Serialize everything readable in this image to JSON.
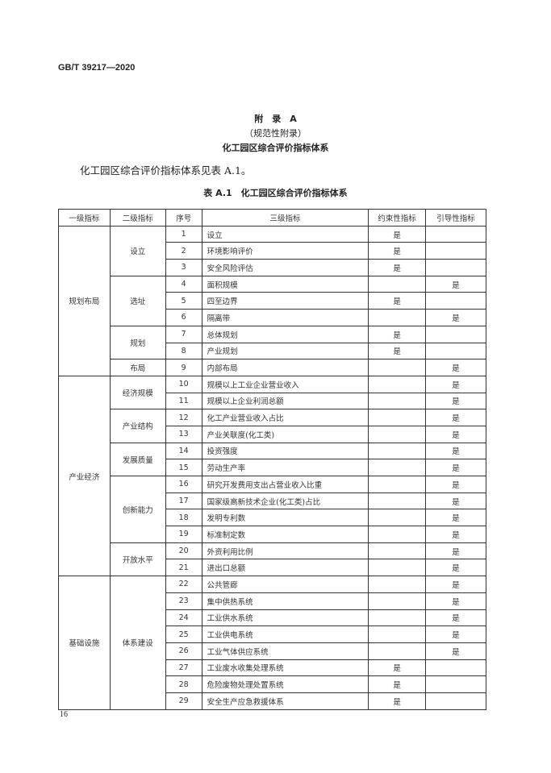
{
  "header": "GB/T 39217—2020",
  "appendix_title": "附　录　A",
  "appendix_type": "（规范性附录）",
  "appendix_name": "化工园区综合评价指标体系",
  "body_text": "化工园区综合评价指标体系见表 A.1。",
  "table_caption": "表 A.1　化工园区综合评价指标体系",
  "columns": [
    "一级指标",
    "二级指标",
    "序号",
    "三级指标",
    "约束性指标",
    "引导性指标"
  ],
  "groups": [
    {
      "level1": "规划布局",
      "subs": [
        {
          "level2": "设立",
          "rows": [
            [
              "1",
              "设立",
              "是",
              ""
            ],
            [
              "2",
              "环境影响评价",
              "是",
              ""
            ],
            [
              "3",
              "安全风险评估",
              "是",
              ""
            ]
          ]
        },
        {
          "level2": "选址",
          "rows": [
            [
              "4",
              "面积规模",
              "",
              "是"
            ],
            [
              "5",
              "四至边界",
              "是",
              ""
            ],
            [
              "6",
              "隔离带",
              "",
              "是"
            ]
          ]
        },
        {
          "level2": "规划",
          "rows": [
            [
              "7",
              "总体规划",
              "是",
              ""
            ],
            [
              "8",
              "产业规划",
              "是",
              ""
            ]
          ]
        },
        {
          "level2": "布局",
          "rows": [
            [
              "9",
              "内部布局",
              "",
              "是"
            ]
          ]
        }
      ]
    },
    {
      "level1": "产业经济",
      "subs": [
        {
          "level2": "经济规模",
          "rows": [
            [
              "10",
              "规模以上工业企业营业收入",
              "",
              "是"
            ],
            [
              "11",
              "规模以上企业利润总额",
              "",
              "是"
            ]
          ]
        },
        {
          "level2": "产业结构",
          "rows": [
            [
              "12",
              "化工产业营业收入占比",
              "",
              "是"
            ],
            [
              "13",
              "产业关联度(化工类)",
              "",
              "是"
            ]
          ]
        },
        {
          "level2": "发展质量",
          "rows": [
            [
              "14",
              "投资强度",
              "",
              "是"
            ],
            [
              "15",
              "劳动生产率",
              "",
              "是"
            ]
          ]
        },
        {
          "level2": "创新能力",
          "rows": [
            [
              "16",
              "研究开发费用支出占营业收入比重",
              "",
              "是"
            ],
            [
              "17",
              "国家级高新技术企业(化工类)占比",
              "",
              "是"
            ],
            [
              "18",
              "发明专利数",
              "",
              "是"
            ],
            [
              "19",
              "标准制定数",
              "",
              "是"
            ]
          ]
        },
        {
          "level2": "开放水平",
          "rows": [
            [
              "20",
              "外资利用比例",
              "",
              "是"
            ],
            [
              "21",
              "进出口总额",
              "",
              "是"
            ]
          ]
        }
      ]
    },
    {
      "level1": "基础设施",
      "subs": [
        {
          "level2": "体系建设",
          "rows": [
            [
              "22",
              "公共管廊",
              "",
              "是"
            ],
            [
              "23",
              "集中供热系统",
              "",
              "是"
            ],
            [
              "24",
              "工业供水系统",
              "",
              "是"
            ],
            [
              "25",
              "工业供电系统",
              "",
              "是"
            ],
            [
              "26",
              "工业气体供应系统",
              "",
              "是"
            ],
            [
              "27",
              "工业废水收集处理系统",
              "是",
              ""
            ],
            [
              "28",
              "危险废物处理处置系统",
              "是",
              ""
            ],
            [
              "29",
              "安全生产应急救援体系",
              "是",
              ""
            ]
          ]
        }
      ]
    }
  ],
  "page_number": "16"
}
